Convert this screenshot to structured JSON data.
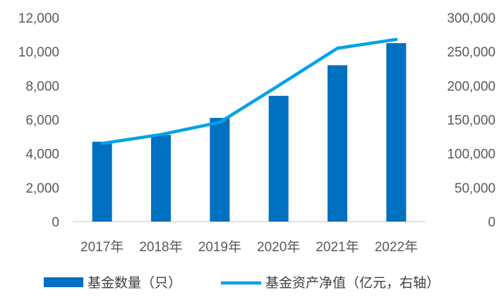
{
  "chart_data": {
    "type": "bar",
    "title": "",
    "categories": [
      "2017年",
      "2018年",
      "2019年",
      "2020年",
      "2021年",
      "2022年"
    ],
    "series": [
      {
        "name": "基金数量（只）",
        "type": "bar",
        "axis": "left",
        "color": "#0070C0",
        "values": [
          4700,
          5100,
          6100,
          7400,
          9200,
          10500
        ]
      },
      {
        "name": "基金资产净值（亿元，右轴）",
        "type": "line",
        "axis": "right",
        "color": "#00A2E8",
        "values": [
          115000,
          128000,
          146000,
          200000,
          255000,
          268000
        ]
      }
    ],
    "y_left": {
      "min": 0,
      "max": 12000,
      "ticks": [
        0,
        2000,
        4000,
        6000,
        8000,
        10000,
        12000
      ],
      "tick_labels": [
        "0",
        "2,000",
        "4,000",
        "6,000",
        "8,000",
        "10,000",
        "12,000"
      ]
    },
    "y_right": {
      "min": 0,
      "max": 300000,
      "ticks": [
        0,
        50000,
        100000,
        150000,
        200000,
        250000,
        300000
      ],
      "tick_labels": [
        "0",
        "50,000",
        "100,000",
        "150,000",
        "200,000",
        "250,000",
        "300,000"
      ]
    },
    "grid": false,
    "legend_position": "bottom"
  }
}
